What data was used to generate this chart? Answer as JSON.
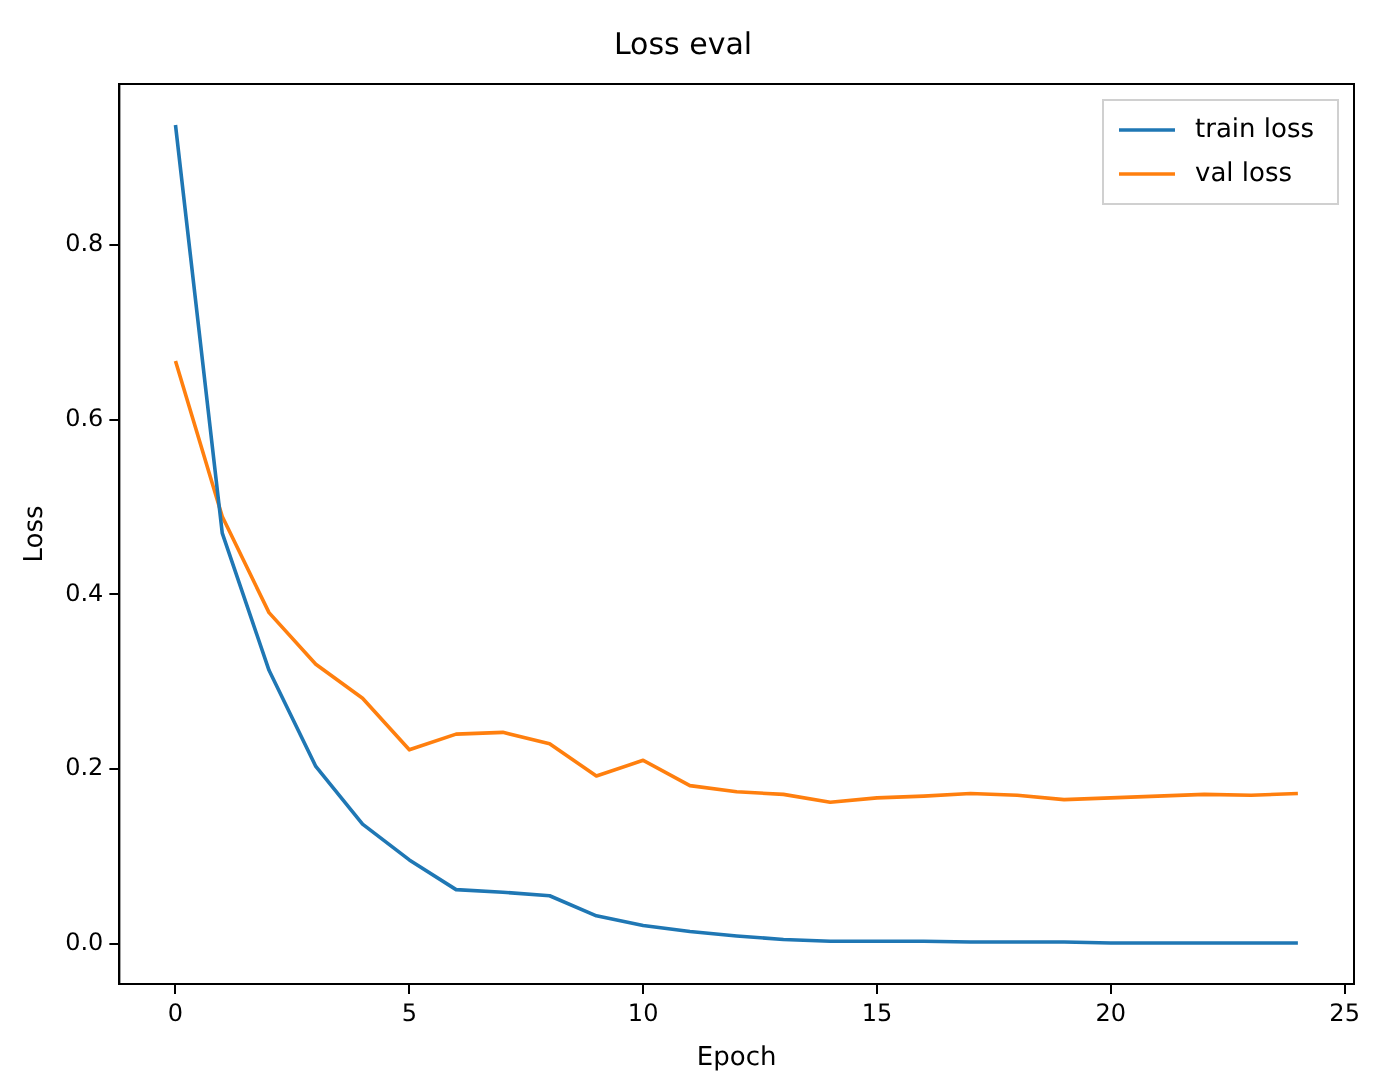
{
  "chart_data": {
    "type": "line",
    "title": "Loss eval",
    "xlabel": "Epoch",
    "ylabel": "Loss",
    "x": [
      0,
      1,
      2,
      3,
      4,
      5,
      6,
      7,
      8,
      9,
      10,
      11,
      12,
      13,
      14,
      15,
      16,
      17,
      18,
      19,
      20,
      21,
      22,
      23,
      24
    ],
    "series": [
      {
        "name": "train loss",
        "color": "#1f77b4",
        "values": [
          0.937,
          0.47,
          0.313,
          0.203,
          0.137,
          0.096,
          0.062,
          0.059,
          0.055,
          0.032,
          0.021,
          0.014,
          0.009,
          0.005,
          0.003,
          0.003,
          0.003,
          0.002,
          0.002,
          0.002,
          0.001,
          0.001,
          0.001,
          0.001,
          0.001
        ]
      },
      {
        "name": "val loss",
        "color": "#ff7f0e",
        "values": [
          0.667,
          0.489,
          0.379,
          0.32,
          0.281,
          0.222,
          0.24,
          0.242,
          0.229,
          0.192,
          0.21,
          0.181,
          0.174,
          0.171,
          0.162,
          0.167,
          0.169,
          0.172,
          0.17,
          0.165,
          0.167,
          0.169,
          0.171,
          0.17,
          0.172
        ]
      }
    ],
    "xlim": [
      -1.2,
      25.2
    ],
    "ylim": [
      -0.046,
      0.984
    ],
    "xticks": [
      0,
      5,
      10,
      15,
      20,
      25
    ],
    "yticks": [
      {
        "value": 0,
        "label": "0.0"
      },
      {
        "value": 0.2,
        "label": "0.2"
      },
      {
        "value": 0.4,
        "label": "0.4"
      },
      {
        "value": 0.6,
        "label": "0.6"
      },
      {
        "value": 0.8,
        "label": "0.8"
      }
    ],
    "legend": "top right",
    "grid": false,
    "marker": "none",
    "line_style": "solid"
  }
}
